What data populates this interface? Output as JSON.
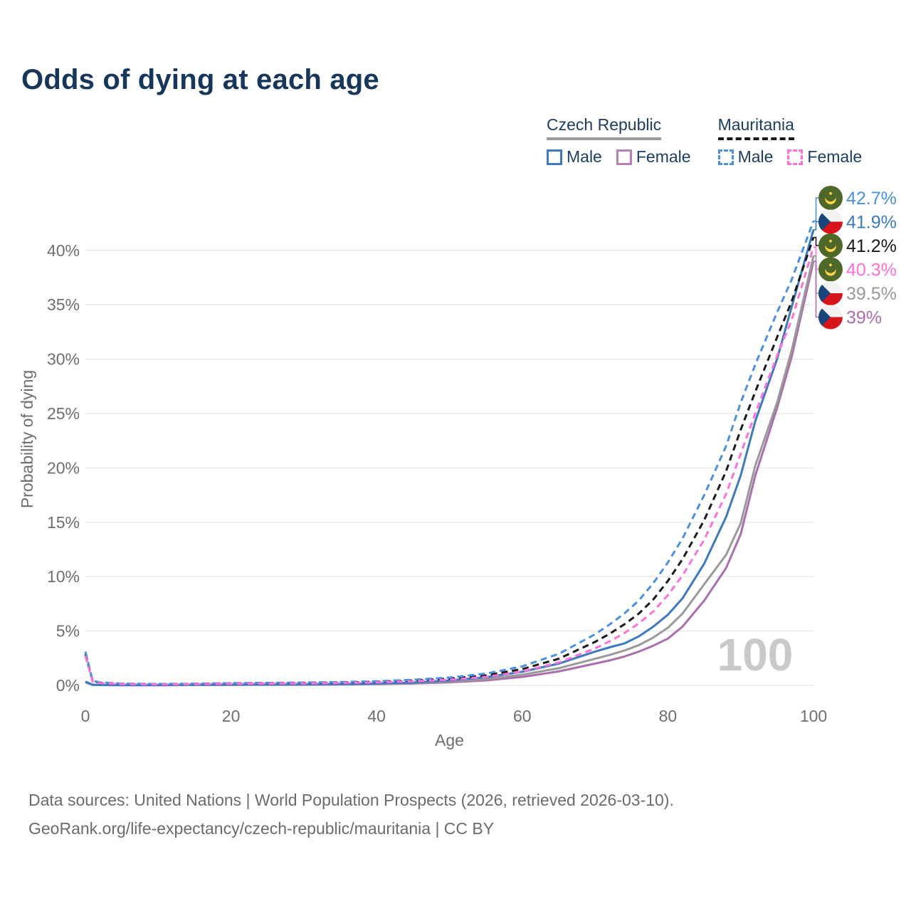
{
  "title": "Odds of dying at each age",
  "legend": {
    "groups": [
      {
        "title": "Czech Republic",
        "underline": "solid",
        "underline_color": "#9a9a9a",
        "items": [
          {
            "label": "Male",
            "color": "#3c79c0",
            "dash": "solid"
          },
          {
            "label": "Female",
            "color": "#b77fb7",
            "dash": "solid"
          }
        ]
      },
      {
        "title": "Mauritania",
        "underline": "dashed",
        "underline_color": "#1a1a1a",
        "items": [
          {
            "label": "Male",
            "color": "#4a90e2",
            "dash": "dashed"
          },
          {
            "label": "Female",
            "color": "#ff70d8",
            "dash": "dashed"
          }
        ]
      }
    ]
  },
  "chart_data": {
    "type": "line",
    "title": "Odds of dying at each age",
    "xlabel": "Age",
    "ylabel": "Probability of dying",
    "x_ticks": [
      "0",
      "20",
      "40",
      "60",
      "80",
      "100"
    ],
    "y_ticks": [
      "0%",
      "5%",
      "10%",
      "15%",
      "20%",
      "25%",
      "30%",
      "35%",
      "40%"
    ],
    "xlim": [
      0,
      100
    ],
    "ylim": [
      0,
      44
    ],
    "grid": "horizontal",
    "legend_position": "top-right",
    "watermark": "100",
    "ages": [
      0,
      1,
      2,
      5,
      10,
      15,
      20,
      25,
      30,
      35,
      40,
      45,
      50,
      55,
      60,
      65,
      70,
      72,
      74,
      76,
      78,
      80,
      82,
      85,
      88,
      90,
      92,
      95,
      97,
      100
    ],
    "series": [
      {
        "name": "Czech Republic Female",
        "color": "#ab6dad",
        "style": "solid",
        "values": [
          0.28,
          0.05,
          0.03,
          0.02,
          0.02,
          0.03,
          0.04,
          0.05,
          0.06,
          0.08,
          0.11,
          0.17,
          0.28,
          0.46,
          0.78,
          1.28,
          2.0,
          2.3,
          2.65,
          3.1,
          3.65,
          4.3,
          5.4,
          7.8,
          10.8,
          13.9,
          19.3,
          25.5,
          30.2,
          39.0
        ],
        "end_label": "39%"
      },
      {
        "name": "Czech Republic Total",
        "color": "#9a9a9a",
        "style": "solid",
        "values": [
          0.3,
          0.05,
          0.03,
          0.02,
          0.02,
          0.04,
          0.06,
          0.07,
          0.08,
          0.1,
          0.14,
          0.21,
          0.36,
          0.58,
          0.98,
          1.58,
          2.45,
          2.8,
          3.2,
          3.7,
          4.4,
          5.3,
          6.6,
          9.3,
          12.0,
          14.9,
          20.2,
          26.0,
          30.8,
          39.5
        ],
        "end_label": "39.5%"
      },
      {
        "name": "Czech Republic Male",
        "color": "#3c79c0",
        "style": "solid",
        "values": [
          0.35,
          0.06,
          0.04,
          0.03,
          0.03,
          0.05,
          0.08,
          0.09,
          0.1,
          0.12,
          0.17,
          0.26,
          0.45,
          0.75,
          1.25,
          2.0,
          3.1,
          3.5,
          3.85,
          4.5,
          5.4,
          6.5,
          8.0,
          11.2,
          15.5,
          19.3,
          24.3,
          30.0,
          34.8,
          41.9
        ],
        "end_label": "41.9%"
      },
      {
        "name": "Mauritania Total",
        "color": "#1a1a1a",
        "style": "dashed",
        "values": [
          2.9,
          0.38,
          0.25,
          0.14,
          0.11,
          0.14,
          0.18,
          0.2,
          0.23,
          0.27,
          0.33,
          0.45,
          0.62,
          0.92,
          1.5,
          2.45,
          4.0,
          4.75,
          5.6,
          6.6,
          7.9,
          9.6,
          11.6,
          15.2,
          19.7,
          23.5,
          27.0,
          32.0,
          35.3,
          41.2
        ],
        "end_label": "41.2%"
      },
      {
        "name": "Mauritania Male",
        "color": "#4a90e2",
        "style": "dashed",
        "values": [
          3.1,
          0.42,
          0.28,
          0.16,
          0.13,
          0.16,
          0.21,
          0.23,
          0.26,
          0.31,
          0.38,
          0.52,
          0.72,
          1.08,
          1.75,
          2.9,
          4.7,
          5.6,
          6.6,
          7.8,
          9.4,
          11.3,
          13.5,
          17.5,
          22.0,
          26.0,
          29.5,
          34.3,
          37.3,
          42.7
        ],
        "end_label": "42.7%"
      },
      {
        "name": "Mauritania Female",
        "color": "#ff70d8",
        "style": "dashed",
        "values": [
          2.7,
          0.34,
          0.22,
          0.12,
          0.1,
          0.12,
          0.15,
          0.17,
          0.19,
          0.23,
          0.28,
          0.38,
          0.52,
          0.78,
          1.28,
          2.1,
          3.4,
          4.05,
          4.8,
          5.7,
          6.8,
          8.3,
          10.1,
          13.4,
          17.6,
          21.3,
          25.0,
          30.3,
          33.6,
          40.3
        ],
        "end_label": "40.3%"
      }
    ],
    "end_labels": [
      {
        "series": "Mauritania Male",
        "value": "42.7%",
        "color": "#4a90e2",
        "flag": "mauritania"
      },
      {
        "series": "Czech Republic Male",
        "value": "41.9%",
        "color": "#3c79c0",
        "flag": "czech"
      },
      {
        "series": "Mauritania Total",
        "value": "41.2%",
        "color": "#1a1a1a",
        "flag": "mauritania"
      },
      {
        "series": "Mauritania Female",
        "value": "40.3%",
        "color": "#ff70d8",
        "flag": "mauritania"
      },
      {
        "series": "Czech Republic Total",
        "value": "39.5%",
        "color": "#9a9a9a",
        "flag": "czech"
      },
      {
        "series": "Czech Republic Female",
        "value": "39%",
        "color": "#ab6dad",
        "flag": "czech"
      }
    ]
  },
  "flag_colors": {
    "czech": {
      "white": "#f2f2f2",
      "red": "#d7141a",
      "blue": "#17457c"
    },
    "mauritania": {
      "green": "#4e682a",
      "yellow": "#ffd447"
    }
  },
  "footer": {
    "line1": "Data sources: United Nations | World Population Prospects (2026, retrieved 2026-03-10).",
    "line2": "GeoRank.org/life-expectancy/czech-republic/mauritania | CC BY"
  }
}
